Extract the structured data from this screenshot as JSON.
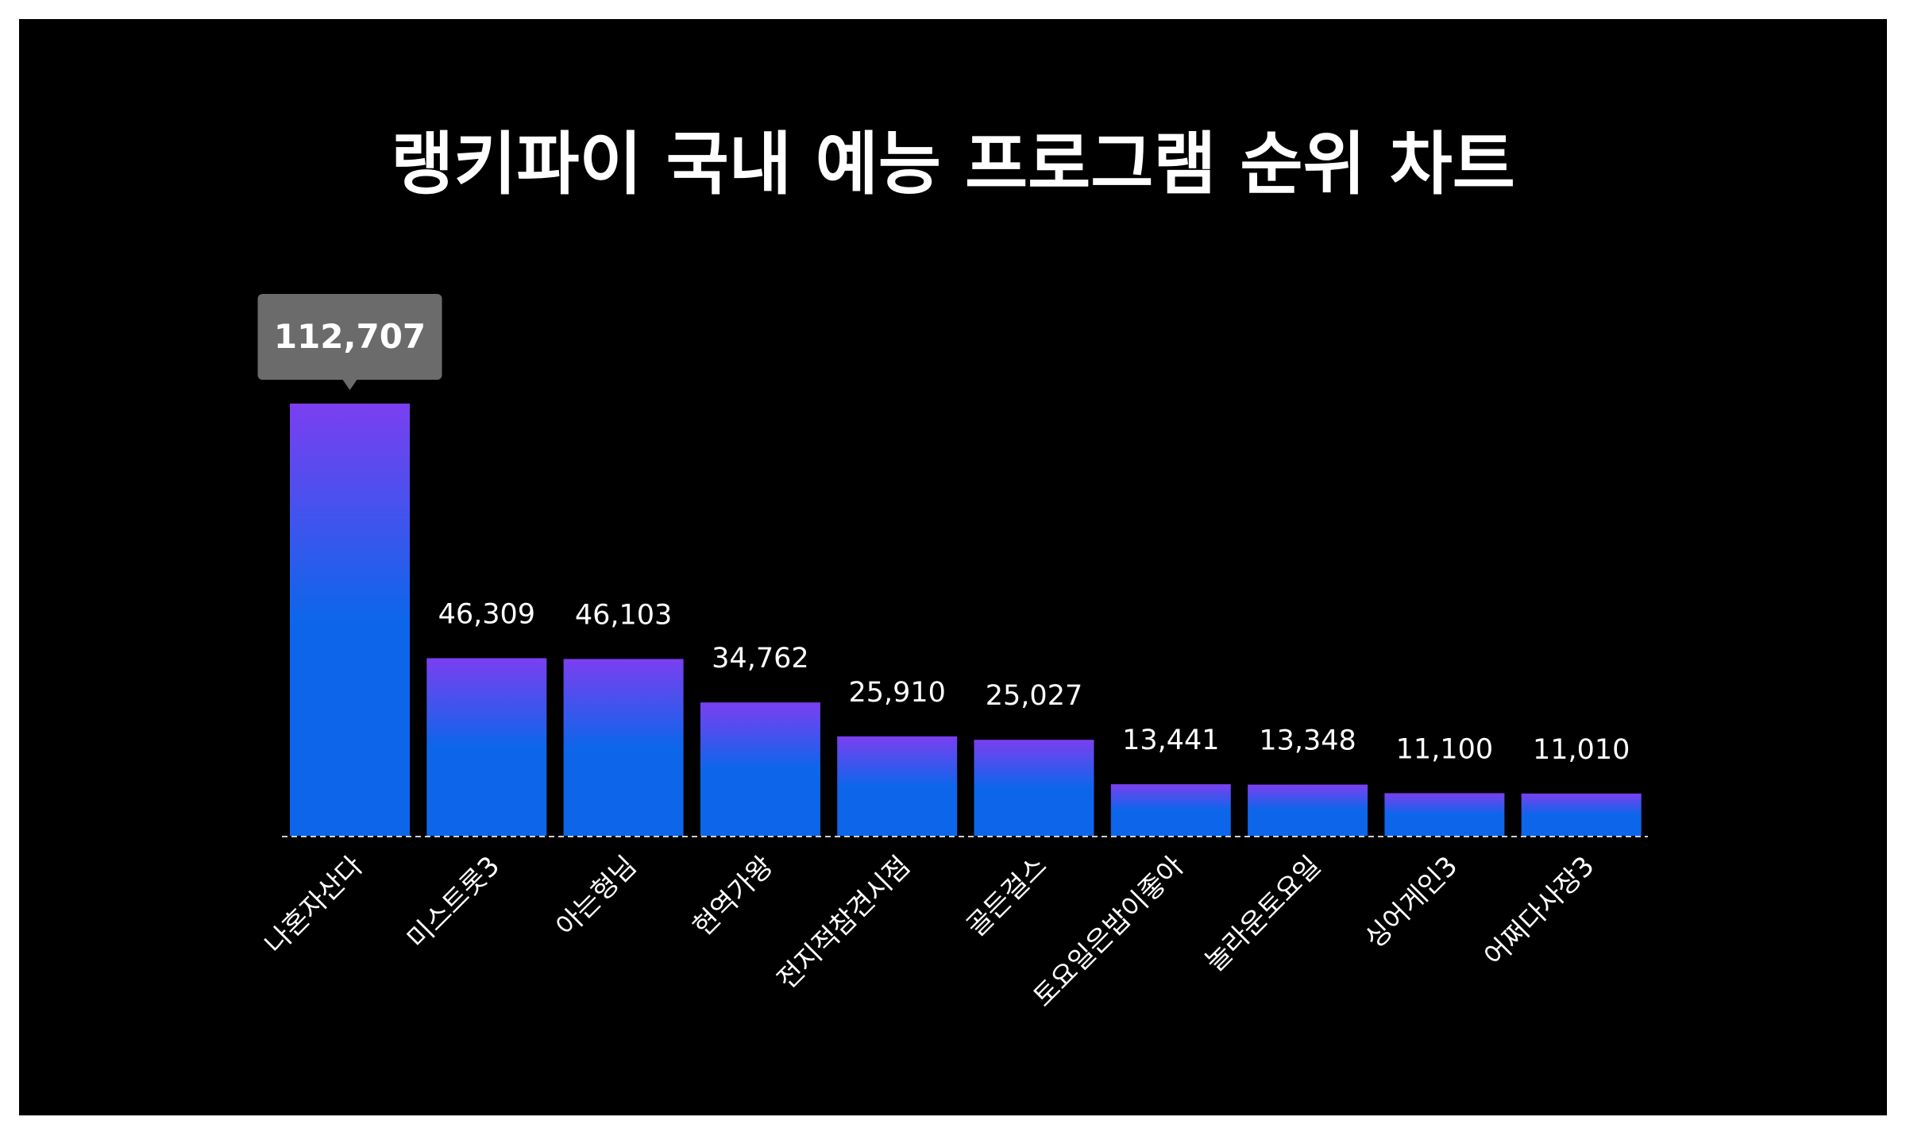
{
  "chart_data": {
    "type": "bar",
    "title": "랭키파이 국내 예능 프로그램 순위 차트",
    "categories": [
      "나혼자산다",
      "미스트롯3",
      "아는형님",
      "현역가왕",
      "전지적참견시점",
      "골든걸스",
      "토요일은밥이좋아",
      "놀라운토요일",
      "싱어게인3",
      "어쩌다사장3"
    ],
    "values": [
      112707,
      46309,
      46103,
      34762,
      25910,
      25027,
      13441,
      13348,
      11100,
      11010
    ],
    "value_labels": [
      "112,707",
      "46,309",
      "46,103",
      "34,762",
      "25,910",
      "25,027",
      "13,441",
      "13,348",
      "11,100",
      "11,010"
    ],
    "ylim": [
      0,
      112707
    ],
    "grid": false,
    "legend": "none",
    "highlighted_index": 0,
    "colors": {
      "background": "#000000",
      "bar_top": "#7b3ff0",
      "bar_bottom": "#0d66ea",
      "tooltip_bg": "#6b6b6b",
      "text": "#ffffff",
      "baseline": "#cfcfcf"
    }
  }
}
